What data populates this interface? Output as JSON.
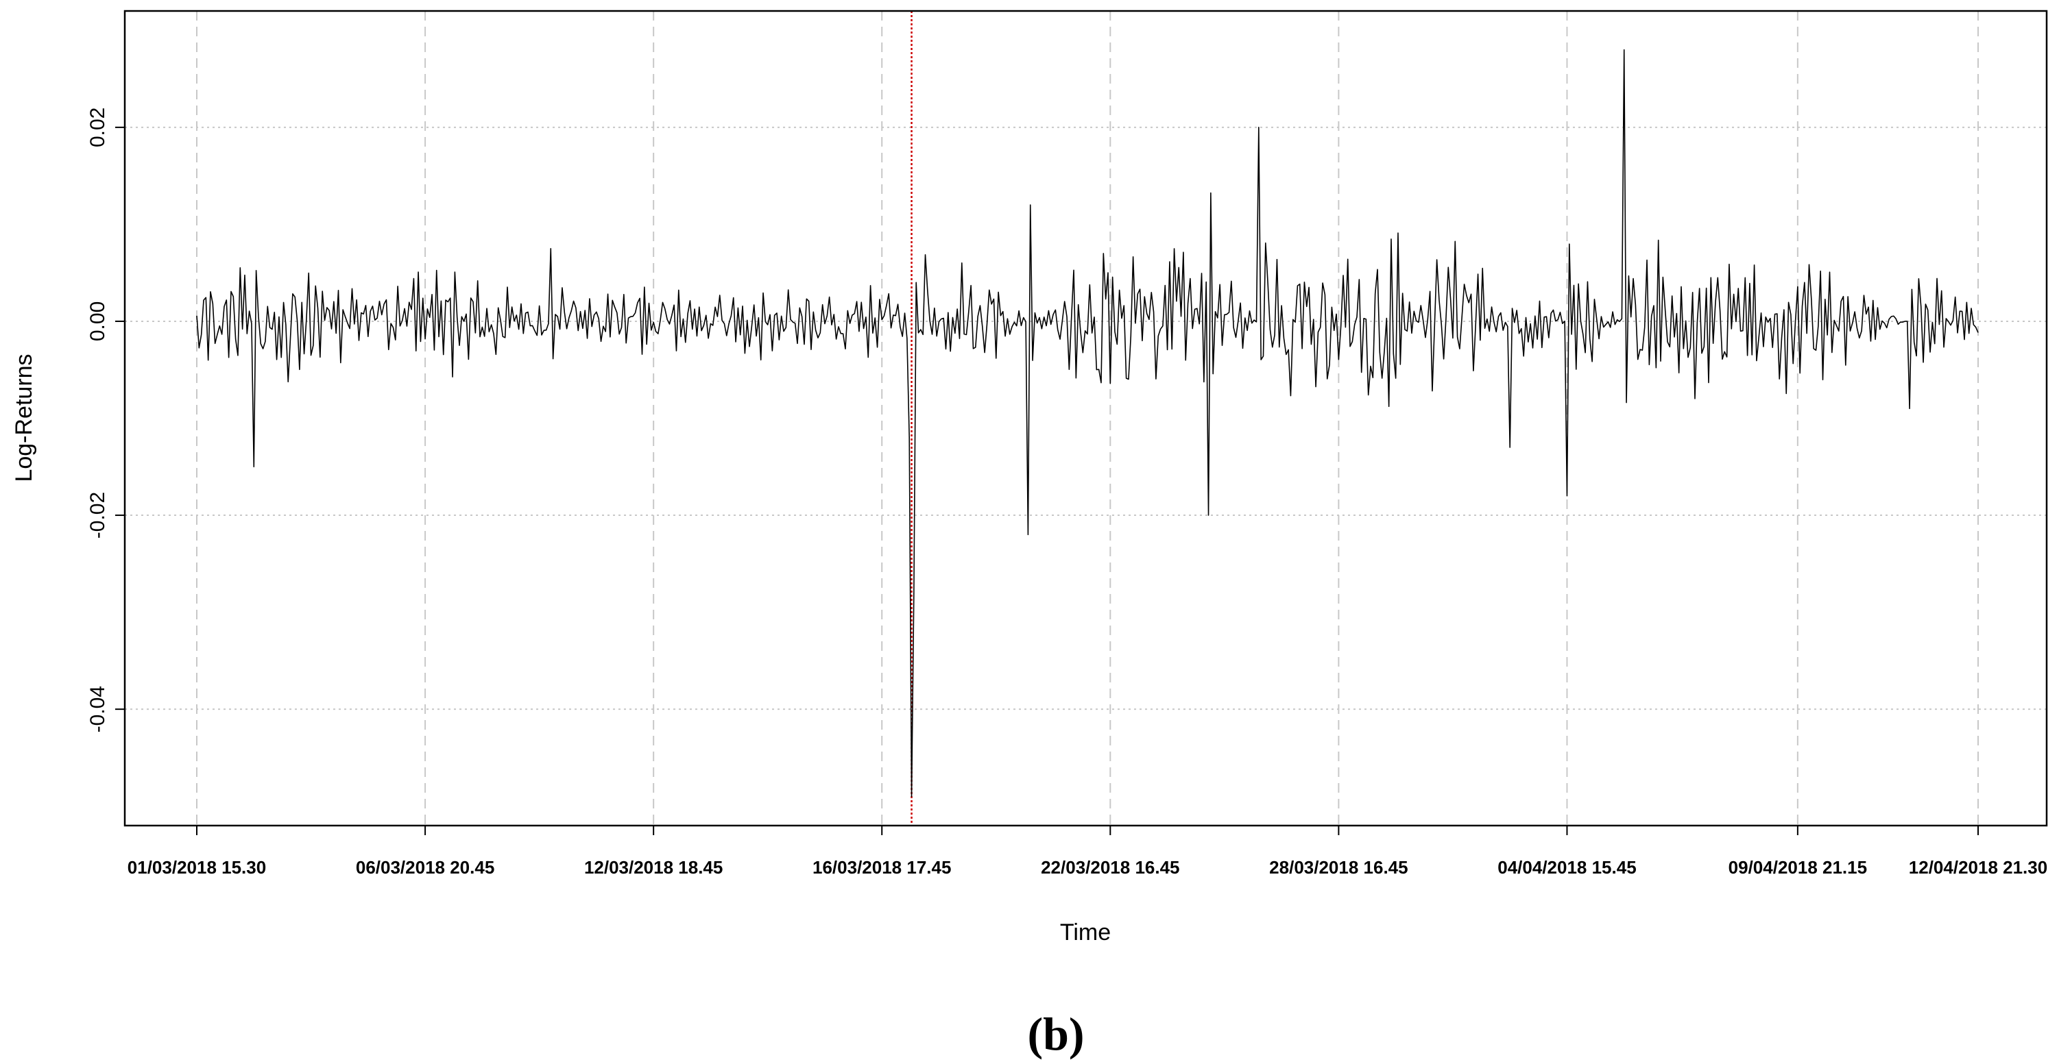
{
  "chart_data": {
    "type": "line",
    "xlabel": "Time",
    "ylabel": "Log-Returns",
    "panel_label": "(b)",
    "ylim": [
      -0.052,
      0.032
    ],
    "y_ticks": [
      {
        "value": 0.02,
        "label": "0.02"
      },
      {
        "value": 0.0,
        "label": "0.00"
      },
      {
        "value": -0.02,
        "label": "-0.02"
      },
      {
        "value": -0.04,
        "label": "-0.04"
      }
    ],
    "x_ticks": [
      {
        "index": 0,
        "label": "01/03/2018 15.30"
      },
      {
        "index": 100,
        "label": "06/03/2018 20.45"
      },
      {
        "index": 200,
        "label": "12/03/2018 18.45"
      },
      {
        "index": 300,
        "label": "16/03/2018 17.45"
      },
      {
        "index": 400,
        "label": "22/03/2018 16.45"
      },
      {
        "index": 500,
        "label": "28/03/2018 16.45"
      },
      {
        "index": 600,
        "label": "04/04/2018 15.45"
      },
      {
        "index": 701,
        "label": "09/04/2018 21.15"
      },
      {
        "index": 780,
        "label": "12/04/2018 21.30"
      }
    ],
    "grid": true,
    "break_index": 313,
    "colors": {
      "series": "#000000",
      "break_line": "#cc0000",
      "grid": "#c8c8c8"
    },
    "series": [
      {
        "x_count": 781,
        "anchors": [
          [
            0,
            0.0,
            0.003
          ],
          [
            20,
            0.0,
            0.004
          ],
          [
            25,
            -0.015,
            0.0
          ],
          [
            26,
            0.0,
            0.004
          ],
          [
            80,
            0.0,
            0.003
          ],
          [
            90,
            0.0,
            0.004
          ],
          [
            100,
            0.0,
            0.003
          ],
          [
            110,
            0.002,
            0.0035
          ],
          [
            155,
            0.0,
            0.0025
          ],
          [
            155,
            0.0075,
            0.0
          ],
          [
            156,
            0.0,
            0.0025
          ],
          [
            210,
            0.0,
            0.002
          ],
          [
            300,
            0.0,
            0.003
          ],
          [
            311,
            0.0,
            0.002
          ],
          [
            312,
            -0.012,
            0.0
          ],
          [
            313,
            -0.049,
            0.0
          ],
          [
            314,
            -0.028,
            0.0
          ],
          [
            315,
            0.004,
            0.0
          ],
          [
            320,
            0.0,
            0.005
          ],
          [
            340,
            0.0,
            0.007
          ],
          [
            364,
            -0.022,
            0.0
          ],
          [
            365,
            0.012,
            0.0
          ],
          [
            400,
            0.0,
            0.006
          ],
          [
            443,
            0.0,
            0.007
          ],
          [
            443,
            -0.02,
            0.0
          ],
          [
            444,
            0.0,
            0.007
          ],
          [
            465,
            0.02,
            0.0
          ],
          [
            466,
            0.0,
            0.007
          ],
          [
            500,
            0.0,
            0.006
          ],
          [
            560,
            0.0,
            0.006
          ],
          [
            575,
            -0.013,
            0.0
          ],
          [
            576,
            0.0,
            0.006
          ],
          [
            600,
            -0.018,
            0.0
          ],
          [
            601,
            0.0,
            0.006
          ],
          [
            625,
            0.028,
            0.0
          ],
          [
            626,
            0.0,
            0.005
          ],
          [
            700,
            0.0,
            0.005
          ],
          [
            750,
            -0.009,
            0.0
          ],
          [
            751,
            0.0,
            0.004
          ],
          [
            780,
            0.0,
            0.001
          ]
        ]
      }
    ]
  }
}
